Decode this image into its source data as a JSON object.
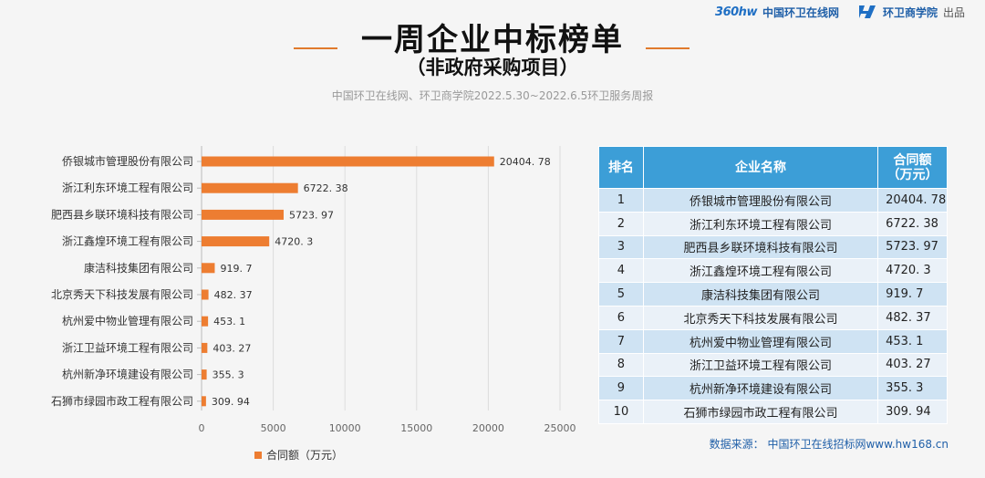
{
  "brand": {
    "logo_text": "360hw",
    "site": "中国环卫在线网",
    "academy": "环卫商学院",
    "suffix": "出品"
  },
  "header": {
    "title": "一周企业中标榜单",
    "subtitle": "（非政府采购项目）",
    "description": "中国环卫在线网、环卫商学院2022.5.30~2022.6.5环卫服务周报"
  },
  "colors": {
    "bar": "#ed7d31",
    "table_header": "#3c9ed7",
    "accent": "#e07a2c"
  },
  "chart_data": {
    "type": "bar",
    "orientation": "horizontal",
    "categories": [
      "侨银城市管理股份有限公司",
      "浙江利东环境工程有限公司",
      "肥西县乡联环境科技有限公司",
      "浙江鑫煌环境工程有限公司",
      "康洁科技集团有限公司",
      "北京秀天下科技发展有限公司",
      "杭州爱中物业管理有限公司",
      "浙江卫益环境工程有限公司",
      "杭州新净环境建设有限公司",
      "石狮市绿园市政工程有限公司"
    ],
    "values": [
      20404.78,
      6722.38,
      5723.97,
      4720.3,
      919.7,
      482.37,
      453.1,
      403.27,
      355.3,
      309.94
    ],
    "value_labels": [
      "20404. 78",
      "6722. 38",
      "5723. 97",
      "4720. 3",
      "919. 7",
      "482. 37",
      "453. 1",
      "403. 27",
      "355. 3",
      "309. 94"
    ],
    "xlim": [
      0,
      25000
    ],
    "xticks": [
      0,
      5000,
      10000,
      15000,
      20000,
      25000
    ],
    "legend": "合同额（万元）",
    "legend_position": "bottom"
  },
  "table": {
    "headers": [
      "排名",
      "企业名称",
      "合同额\n（万元）"
    ],
    "rows": [
      {
        "rank": "1",
        "name": "侨银城市管理股份有限公司",
        "amount": "20404. 78"
      },
      {
        "rank": "2",
        "name": "浙江利东环境工程有限公司",
        "amount": "6722. 38"
      },
      {
        "rank": "3",
        "name": "肥西县乡联环境科技有限公司",
        "amount": "5723. 97"
      },
      {
        "rank": "4",
        "name": "浙江鑫煌环境工程有限公司",
        "amount": "4720. 3"
      },
      {
        "rank": "5",
        "name": "康洁科技集团有限公司",
        "amount": "919. 7"
      },
      {
        "rank": "6",
        "name": "北京秀天下科技发展有限公司",
        "amount": "482. 37"
      },
      {
        "rank": "7",
        "name": "杭州爱中物业管理有限公司",
        "amount": "453. 1"
      },
      {
        "rank": "8",
        "name": "浙江卫益环境工程有限公司",
        "amount": "403. 27"
      },
      {
        "rank": "9",
        "name": "杭州新净环境建设有限公司",
        "amount": "355. 3"
      },
      {
        "rank": "10",
        "name": "石狮市绿园市政工程有限公司",
        "amount": "309. 94"
      }
    ]
  },
  "source": "数据来源： 中国环卫在线招标网www.hw168.cn"
}
